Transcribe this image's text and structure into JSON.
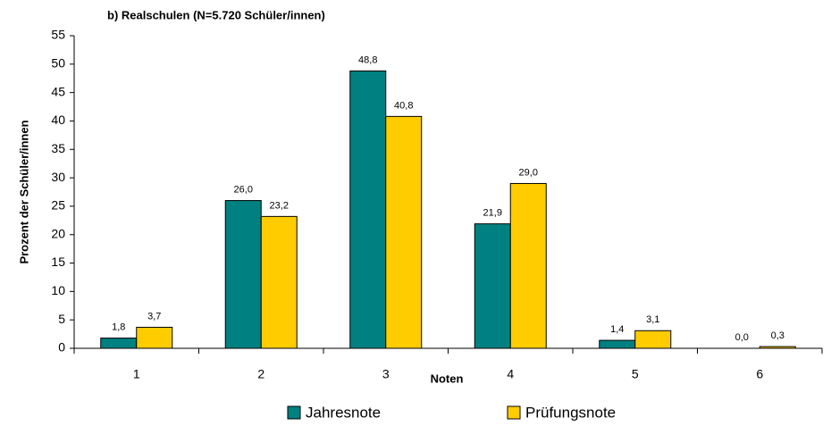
{
  "chart_data": {
    "type": "bar",
    "title": "b) Realschulen (N=5.720 Schüler/innen)",
    "x_label": "Noten",
    "y_label": "Prozent der Schüler/innen",
    "categories": [
      "1",
      "2",
      "3",
      "4",
      "5",
      "6"
    ],
    "series": [
      {
        "name": "Jahresnote",
        "color": "#008080",
        "values": [
          1.8,
          26.0,
          48.8,
          21.9,
          1.4,
          0.0
        ],
        "value_labels": [
          "1,8",
          "26,0",
          "48,8",
          "21,9",
          "1,4",
          "0,0"
        ]
      },
      {
        "name": "Prüfungsnote",
        "color": "#ffcc00",
        "values": [
          3.7,
          23.2,
          40.8,
          29.0,
          3.1,
          0.3
        ],
        "value_labels": [
          "3,7",
          "23,2",
          "40,8",
          "29,0",
          "3,1",
          "0,3"
        ]
      }
    ],
    "ylim": [
      0,
      55
    ],
    "yticks": [
      0,
      5,
      10,
      15,
      20,
      25,
      30,
      35,
      40,
      45,
      50,
      55
    ],
    "grid": false
  }
}
